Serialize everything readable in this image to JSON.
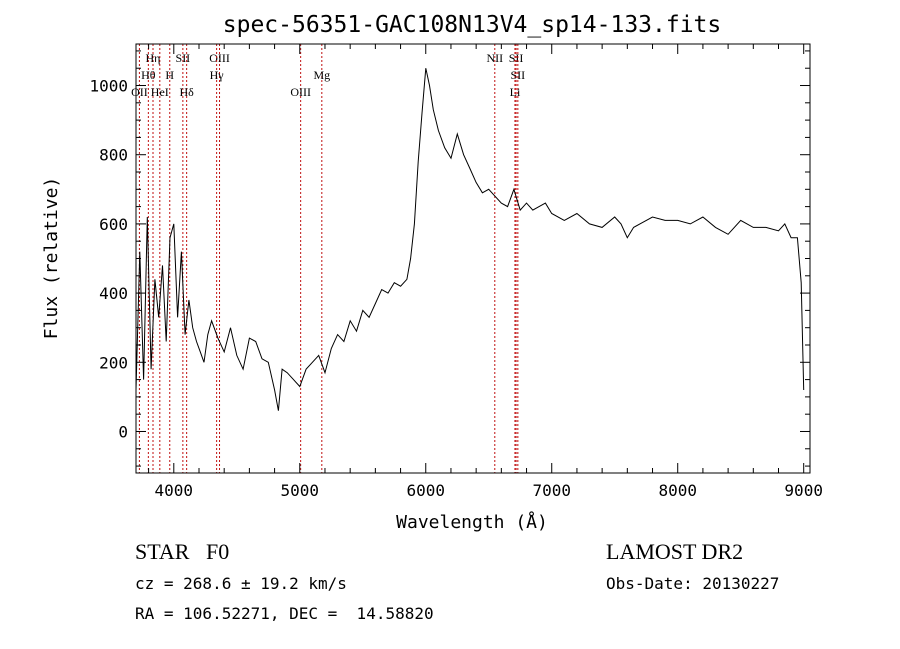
{
  "chart_data": {
    "type": "line",
    "title": "spec-56351-GAC108N13V4_sp14-133.fits",
    "xlabel": "Wavelength (Å)",
    "ylabel": "Flux (relative)",
    "xlim": [
      3700,
      9050
    ],
    "ylim": [
      -120,
      1120
    ],
    "xticks": [
      4000,
      5000,
      6000,
      7000,
      8000,
      9000
    ],
    "xtick_labels": [
      "4000",
      "5000",
      "6000",
      "7000",
      "8000",
      "9000"
    ],
    "yticks": [
      0,
      200,
      400,
      600,
      800,
      1000
    ],
    "ytick_labels": [
      "0",
      "200",
      "400",
      "600",
      "800",
      "1000"
    ],
    "grid": false,
    "line_color": "#000000",
    "marker_color": "#c01010",
    "series": [
      {
        "x": [
          3700,
          3730,
          3760,
          3790,
          3820,
          3850,
          3880,
          3910,
          3940,
          3970,
          4000,
          4030,
          4060,
          4090,
          4120,
          4150,
          4180,
          4210,
          4240,
          4270,
          4300,
          4350,
          4400,
          4450,
          4500,
          4550,
          4600,
          4650,
          4700,
          4750,
          4800,
          4830,
          4860,
          4900,
          4950,
          5000,
          5050,
          5100,
          5150,
          5200,
          5250,
          5300,
          5350,
          5400,
          5450,
          5500,
          5550,
          5600,
          5650,
          5700,
          5750,
          5800,
          5850,
          5880,
          5910,
          5940,
          5970,
          6000,
          6030,
          6060,
          6100,
          6150,
          6200,
          6250,
          6300,
          6350,
          6400,
          6450,
          6500,
          6550,
          6600,
          6650,
          6700,
          6750,
          6800,
          6850,
          6900,
          6950,
          7000,
          7100,
          7200,
          7300,
          7400,
          7500,
          7550,
          7600,
          7650,
          7700,
          7800,
          7900,
          8000,
          8100,
          8200,
          8300,
          8400,
          8500,
          8600,
          8700,
          8800,
          8850,
          8900,
          8950,
          8980,
          9000
        ],
        "y": [
          120,
          520,
          150,
          620,
          180,
          440,
          330,
          480,
          260,
          560,
          600,
          330,
          520,
          280,
          380,
          300,
          260,
          230,
          200,
          280,
          320,
          270,
          230,
          300,
          220,
          180,
          270,
          260,
          210,
          200,
          120,
          60,
          180,
          170,
          150,
          130,
          180,
          200,
          220,
          170,
          240,
          280,
          260,
          320,
          290,
          350,
          330,
          370,
          410,
          400,
          430,
          420,
          440,
          500,
          600,
          780,
          920,
          1050,
          1000,
          930,
          870,
          820,
          790,
          860,
          800,
          760,
          720,
          690,
          700,
          680,
          660,
          650,
          700,
          640,
          660,
          640,
          650,
          660,
          630,
          610,
          630,
          600,
          590,
          620,
          600,
          560,
          590,
          600,
          620,
          610,
          610,
          600,
          620,
          590,
          570,
          610,
          590,
          590,
          580,
          600,
          560,
          560,
          430,
          120
        ]
      }
    ],
    "line_markers": [
      {
        "label": "Hη",
        "wavelength": 3835,
        "row": 1
      },
      {
        "label": "Hθ",
        "wavelength": 3798,
        "row": 2
      },
      {
        "label": "OII",
        "wavelength": 3727,
        "row": 3
      },
      {
        "label": "HeI",
        "wavelength": 3889,
        "row": 3
      },
      {
        "label": "H",
        "wavelength": 3968,
        "row": 2
      },
      {
        "label": "SII",
        "wavelength": 4072,
        "row": 1
      },
      {
        "label": "Hδ",
        "wavelength": 4102,
        "row": 3
      },
      {
        "label": "OIII",
        "wavelength": 4363,
        "row": 1
      },
      {
        "label": "Hγ",
        "wavelength": 4340,
        "row": 2
      },
      {
        "label": "OIII",
        "wavelength": 5007,
        "row": 3
      },
      {
        "label": "Mg",
        "wavelength": 5175,
        "row": 2
      },
      {
        "label": "NII",
        "wavelength": 6548,
        "row": 1
      },
      {
        "label": "SII",
        "wavelength": 6717,
        "row": 1
      },
      {
        "label": "SII",
        "wavelength": 6731,
        "row": 2
      },
      {
        "label": "Li",
        "wavelength": 6708,
        "row": 3
      }
    ]
  },
  "info": {
    "class_line": "STAR   F0",
    "cz_line": "cz = 268.6 ± 19.2 km/s",
    "radec_line": "RA = 106.52271, DEC =  14.58820",
    "survey": "LAMOST DR2",
    "obs_date": "Obs-Date: 20130227"
  }
}
